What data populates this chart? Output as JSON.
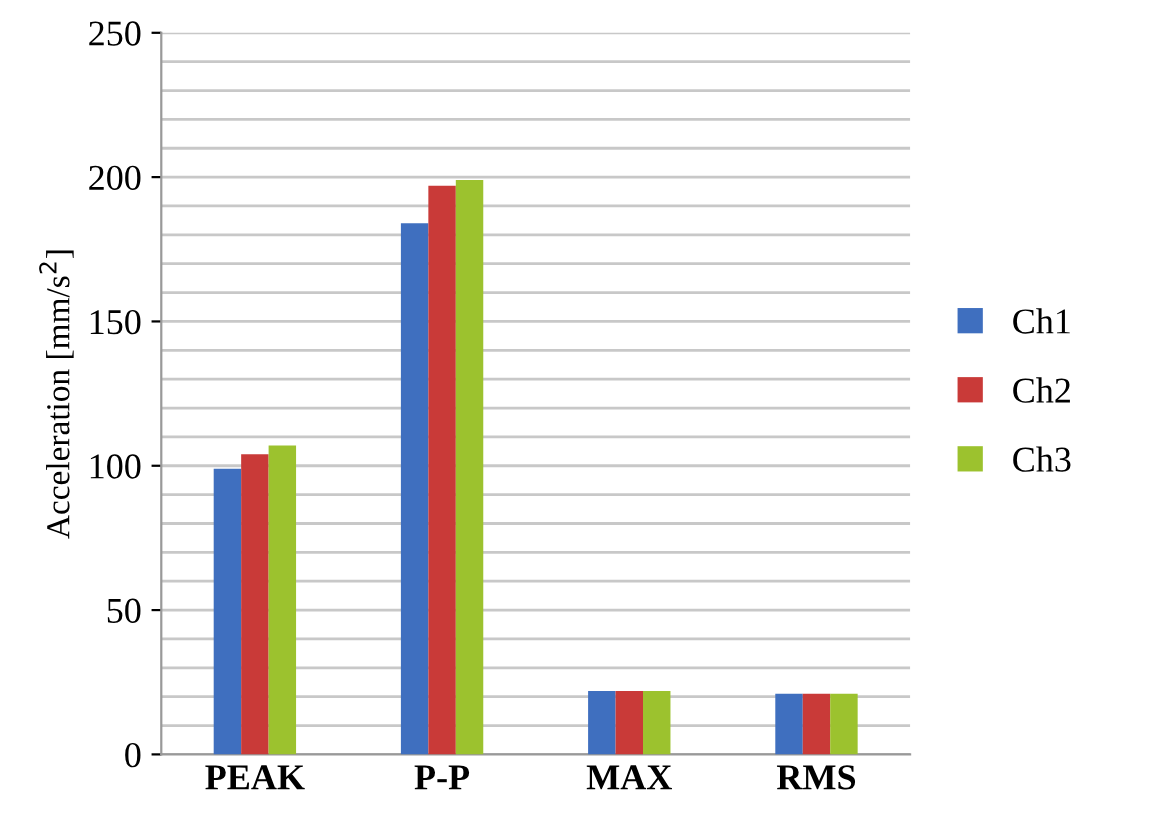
{
  "chart_data": {
    "type": "bar",
    "ylabel": "Acceleration [mm/s$^{2}$]",
    "categories": [
      "PEAK",
      "P-P",
      "MAX",
      "RMS"
    ],
    "series": [
      {
        "name": "Ch1",
        "color": "#3f6fbf",
        "values": [
          99,
          184,
          22,
          21
        ]
      },
      {
        "name": "Ch2",
        "color": "#c93a38",
        "values": [
          104,
          197,
          22,
          21
        ]
      },
      {
        "name": "Ch3",
        "color": "#9cc22e",
        "values": [
          107,
          199,
          22,
          21
        ]
      }
    ],
    "ylim": [
      0,
      250
    ],
    "yticks": [
      0,
      {
        "value": 10,
        "label": null
      },
      {
        "value": 20,
        "label": null
      },
      {
        "value": 30,
        "label": null
      },
      {
        "value": 40,
        "label": null
      },
      50,
      {
        "value": 60,
        "label": null
      },
      {
        "value": 70,
        "label": null
      },
      {
        "value": 80,
        "label": null
      },
      {
        "value": 90,
        "label": null
      },
      100,
      {
        "value": 110,
        "label": null
      },
      {
        "value": 120,
        "label": null
      },
      {
        "value": 130,
        "label": null
      },
      {
        "value": 140,
        "label": null
      },
      150,
      {
        "value": 160,
        "label": null
      },
      {
        "value": 170,
        "label": null
      },
      {
        "value": 180,
        "label": null
      },
      {
        "value": 190,
        "label": null
      },
      200,
      {
        "value": 210,
        "label": null
      },
      {
        "value": 220,
        "label": null
      },
      {
        "value": 230,
        "label": null
      },
      {
        "value": 240,
        "label": null
      },
      250
    ],
    "grid": "y",
    "legend": "right"
  }
}
